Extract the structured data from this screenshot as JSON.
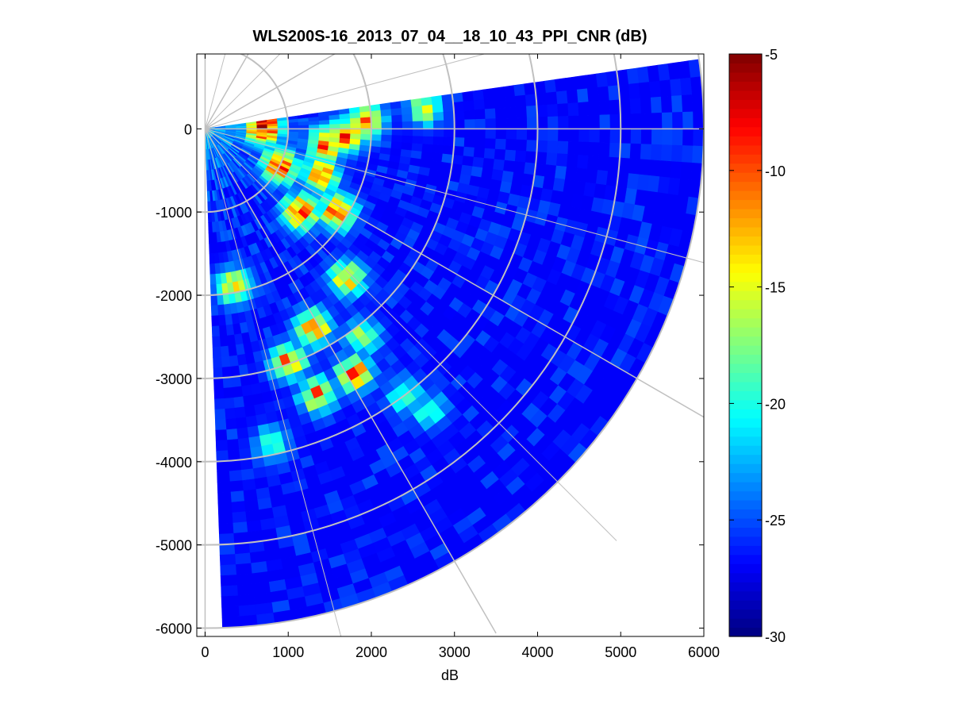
{
  "chart_data": {
    "type": "heatmap",
    "projection": "polar-ppi",
    "title": "WLS200S-16_2013_07_04__18_10_43_PPI_CNR (dB)",
    "xlabel": "dB",
    "ylabel": "",
    "xlim": [
      -100,
      6000
    ],
    "ylim": [
      -6100,
      900
    ],
    "x_ticks": [
      0,
      1000,
      2000,
      3000,
      4000,
      5000,
      6000
    ],
    "x_tick_labels": [
      "0",
      "1000",
      "2000",
      "3000",
      "4000",
      "5000",
      "6000"
    ],
    "y_ticks": [
      0,
      -1000,
      -2000,
      -3000,
      -4000,
      -5000,
      -6000
    ],
    "y_tick_labels": [
      "0",
      "-1000",
      "-2000",
      "-3000",
      "-4000",
      "-5000",
      "-6000"
    ],
    "scan": {
      "origin": [
        0,
        0
      ],
      "azimuth_start_deg": 8,
      "azimuth_end_deg": -88,
      "max_range": 6000,
      "range_gates": 48,
      "beams": 48
    },
    "polar_grid": {
      "ring_radii": [
        1000,
        2000,
        3000,
        4000,
        5000,
        6000
      ],
      "spoke_angles_deg": [
        0,
        30,
        60,
        90,
        -30,
        -60,
        -90
      ],
      "color": "#c0c0c0"
    },
    "features": {
      "background_dB": -27,
      "near_field_dB": -22,
      "hot_spots": [
        {
          "x": 700,
          "y": 20,
          "dB": -6
        },
        {
          "x": 1450,
          "y": -200,
          "dB": -10
        },
        {
          "x": 1700,
          "y": -80,
          "dB": -11
        },
        {
          "x": 1950,
          "y": 80,
          "dB": -12
        },
        {
          "x": 900,
          "y": -450,
          "dB": -9
        },
        {
          "x": 1400,
          "y": -550,
          "dB": -11
        },
        {
          "x": 1150,
          "y": -1000,
          "dB": -9
        },
        {
          "x": 1600,
          "y": -1000,
          "dB": -10
        },
        {
          "x": 1700,
          "y": -1800,
          "dB": -13
        },
        {
          "x": 1300,
          "y": -2400,
          "dB": -11
        },
        {
          "x": 1000,
          "y": -2800,
          "dB": -12
        },
        {
          "x": 1800,
          "y": -2950,
          "dB": -11
        },
        {
          "x": 1350,
          "y": -3200,
          "dB": -12
        },
        {
          "x": 800,
          "y": -3800,
          "dB": -18
        },
        {
          "x": 2700,
          "y": -3400,
          "dB": -19
        },
        {
          "x": 350,
          "y": -1900,
          "dB": -14
        },
        {
          "x": 2650,
          "y": 250,
          "dB": -16
        },
        {
          "x": 2400,
          "y": -3200,
          "dB": -19
        },
        {
          "x": 1900,
          "y": -2500,
          "dB": -17
        }
      ]
    },
    "colorbar": {
      "colormap": "jet",
      "min": -30,
      "max": -5,
      "ticks": [
        -5,
        -10,
        -15,
        -20,
        -25,
        -30
      ],
      "tick_labels": [
        "-5",
        "-10",
        "-15",
        "-20",
        "-25",
        "-30"
      ]
    }
  }
}
